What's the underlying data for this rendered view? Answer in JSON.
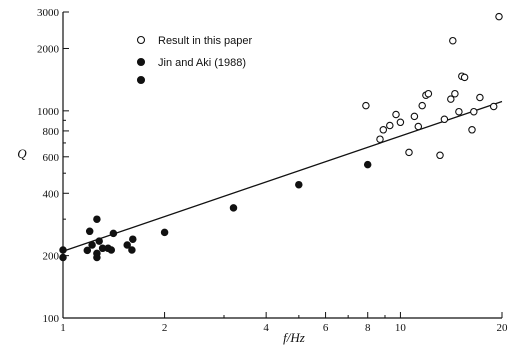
{
  "chart_data": {
    "type": "scatter",
    "title": "",
    "xlabel": "f/Hz",
    "ylabel": "Q",
    "x_scale": "log",
    "y_scale": "log",
    "xlim": [
      1,
      20
    ],
    "ylim": [
      100,
      3000
    ],
    "x_ticks": [
      {
        "value": 1,
        "label": "1"
      },
      {
        "value": 2,
        "label": "2"
      },
      {
        "value": 4,
        "label": "4"
      },
      {
        "value": 6,
        "label": "6"
      },
      {
        "value": 8,
        "label": "8"
      },
      {
        "value": 10,
        "label": "10"
      },
      {
        "value": 20,
        "label": "20"
      }
    ],
    "y_ticks": [
      {
        "value": 100,
        "label": "100"
      },
      {
        "value": 200,
        "label": "200"
      },
      {
        "value": 400,
        "label": "400"
      },
      {
        "value": 600,
        "label": "600"
      },
      {
        "value": 800,
        "label": "800"
      },
      {
        "value": 1000,
        "label": "1000"
      },
      {
        "value": 2000,
        "label": "2000"
      },
      {
        "value": 3000,
        "label": "3000"
      }
    ],
    "legend_position": "top-left",
    "grid": false,
    "series": [
      {
        "name": "Result in this paper",
        "marker": "open-circle",
        "color": "#111111",
        "points": [
          [
            7.9,
            1060
          ],
          [
            8.7,
            730
          ],
          [
            8.9,
            810
          ],
          [
            9.3,
            850
          ],
          [
            9.7,
            960
          ],
          [
            10.0,
            880
          ],
          [
            10.6,
            630
          ],
          [
            11.0,
            940
          ],
          [
            11.3,
            840
          ],
          [
            11.6,
            1060
          ],
          [
            11.9,
            1190
          ],
          [
            12.1,
            1210
          ],
          [
            13.1,
            610
          ],
          [
            13.5,
            910
          ],
          [
            14.1,
            1140
          ],
          [
            14.3,
            2180
          ],
          [
            14.5,
            1210
          ],
          [
            14.9,
            990
          ],
          [
            15.2,
            1470
          ],
          [
            15.5,
            1450
          ],
          [
            16.3,
            810
          ],
          [
            16.5,
            990
          ],
          [
            17.2,
            1160
          ],
          [
            18.9,
            1050
          ],
          [
            19.6,
            2850
          ]
        ]
      },
      {
        "name": "Jin and Aki (1988)",
        "marker": "filled-circle",
        "color": "#111111",
        "points": [
          [
            1.0,
            213
          ],
          [
            1.0,
            196
          ],
          [
            1.18,
            212
          ],
          [
            1.2,
            262
          ],
          [
            1.22,
            225
          ],
          [
            1.26,
            300
          ],
          [
            1.26,
            205
          ],
          [
            1.26,
            196
          ],
          [
            1.28,
            235
          ],
          [
            1.31,
            217
          ],
          [
            1.36,
            217
          ],
          [
            1.39,
            213
          ],
          [
            1.41,
            256
          ],
          [
            1.55,
            225
          ],
          [
            1.6,
            213
          ],
          [
            1.61,
            240
          ],
          [
            2.0,
            259
          ],
          [
            3.2,
            340
          ],
          [
            5.0,
            440
          ],
          [
            8.0,
            550
          ]
        ]
      }
    ],
    "fit_line": {
      "x": [
        1,
        20
      ],
      "y": [
        210,
        1110
      ]
    }
  }
}
